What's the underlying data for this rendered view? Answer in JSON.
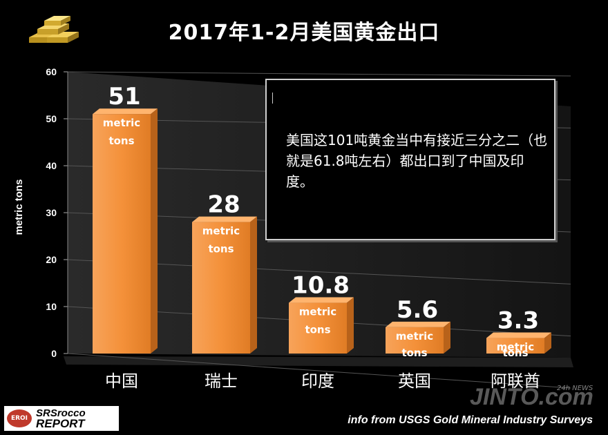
{
  "title": "2017年1-2月美国黄金出口",
  "callout": {
    "text": "美国这101吨黄金当中有接近三分之二（也就是61.8吨左右）都出口到了中国及印度。"
  },
  "source": "info from USGS Gold Mineral Industry Surveys",
  "logo": {
    "badge": "EROI",
    "line1": "SRSrocco",
    "line2": "REPORT"
  },
  "watermark": {
    "main": "JINTO.com",
    "sub": "24h NEWS"
  },
  "chart_data": {
    "type": "bar",
    "title": "2017年1-2月美国黄金出口",
    "ylabel": "metric tons",
    "xlabel": "",
    "ylim": [
      0,
      60
    ],
    "yticks": [
      0,
      10,
      20,
      30,
      40,
      50,
      60
    ],
    "categories": [
      "中国",
      "瑞士",
      "印度",
      "英国",
      "阿联酋"
    ],
    "values": [
      51,
      28,
      10.8,
      5.6,
      3.3
    ],
    "value_labels": [
      "51",
      "28",
      "10.8",
      "5.6",
      "3.3"
    ],
    "unit_label": [
      "metric",
      "tons"
    ],
    "bar_color": "#f4913a",
    "grid": true,
    "legend": "none"
  }
}
